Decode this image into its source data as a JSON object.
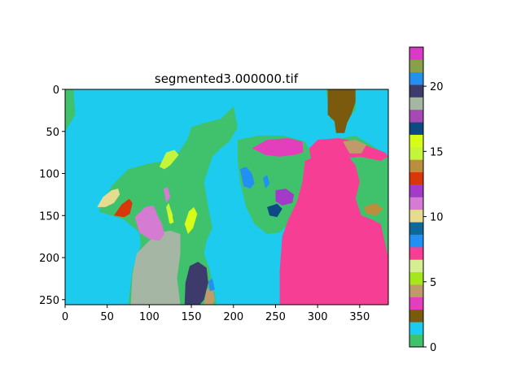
{
  "chart_data": {
    "type": "heatmap",
    "title": "segmented3.000000.tif",
    "xlabel": "",
    "ylabel": "",
    "xlim": [
      0,
      384
    ],
    "ylim": [
      256,
      0
    ],
    "x_ticks": [
      0,
      50,
      100,
      150,
      200,
      250,
      300,
      350
    ],
    "y_ticks": [
      0,
      50,
      100,
      150,
      200,
      250
    ],
    "colorbar": {
      "range": [
        0,
        23
      ],
      "ticks": [
        0,
        5,
        10,
        15,
        20
      ],
      "colors": [
        "#3fc26b",
        "#1ccbee",
        "#7b5a0e",
        "#e33fbd",
        "#c09a6b",
        "#a5e71b",
        "#d7ed93",
        "#f63e95",
        "#218ff3",
        "#10689a",
        "#e5dc90",
        "#d57bd1",
        "#a33ac8",
        "#d8370a",
        "#ba8e3d",
        "#c3f53b",
        "#d6fc18",
        "#0d4a84",
        "#a649b4",
        "#a5b6a4",
        "#3d3a6c",
        "#258ff0",
        "#88a04a",
        "#d93ac7"
      ]
    },
    "regions": [
      {
        "label": 1,
        "polygon": [
          [
            0,
            0
          ],
          [
            384,
            0
          ],
          [
            384,
            256
          ],
          [
            0,
            256
          ]
        ]
      },
      {
        "label": 0,
        "polygon": [
          [
            0,
            0
          ],
          [
            10,
            0
          ],
          [
            12,
            30
          ],
          [
            0,
            50
          ]
        ]
      },
      {
        "label": 0,
        "polygon": [
          [
            288,
            256
          ],
          [
            288,
            190
          ],
          [
            290,
            120
          ],
          [
            300,
            80
          ],
          [
            320,
            60
          ],
          [
            345,
            55
          ],
          [
            370,
            70
          ],
          [
            384,
            80
          ],
          [
            384,
            256
          ]
        ]
      },
      {
        "label": 0,
        "polygon": [
          [
            205,
            60
          ],
          [
            230,
            55
          ],
          [
            260,
            55
          ],
          [
            285,
            62
          ],
          [
            295,
            80
          ],
          [
            293,
            110
          ],
          [
            280,
            140
          ],
          [
            265,
            160
          ],
          [
            255,
            170
          ],
          [
            240,
            172
          ],
          [
            225,
            160
          ],
          [
            215,
            140
          ],
          [
            208,
            110
          ],
          [
            205,
            85
          ]
        ]
      },
      {
        "label": 0,
        "polygon": [
          [
            40,
            145
          ],
          [
            55,
            115
          ],
          [
            75,
            95
          ],
          [
            100,
            88
          ],
          [
            120,
            85
          ],
          [
            135,
            75
          ],
          [
            145,
            60
          ],
          [
            150,
            45
          ],
          [
            165,
            40
          ],
          [
            185,
            35
          ],
          [
            200,
            20
          ],
          [
            205,
            45
          ],
          [
            195,
            62
          ],
          [
            185,
            70
          ],
          [
            175,
            80
          ],
          [
            165,
            110
          ],
          [
            170,
            140
          ],
          [
            175,
            165
          ],
          [
            168,
            180
          ],
          [
            165,
            195
          ],
          [
            172,
            215
          ],
          [
            178,
            245
          ],
          [
            180,
            256
          ],
          [
            75,
            256
          ],
          [
            80,
            215
          ],
          [
            90,
            185
          ],
          [
            88,
            170
          ],
          [
            70,
            155
          ],
          [
            55,
            150
          ]
        ]
      },
      {
        "label": 0,
        "polygon": [
          [
            310,
            0
          ],
          [
            345,
            0
          ],
          [
            345,
            25
          ],
          [
            330,
            40
          ],
          [
            315,
            35
          ]
        ]
      },
      {
        "label": 7,
        "polygon": [
          [
            290,
            70
          ],
          [
            300,
            60
          ],
          [
            325,
            58
          ],
          [
            345,
            62
          ],
          [
            380,
            75
          ],
          [
            384,
            80
          ],
          [
            375,
            85
          ],
          [
            350,
            80
          ],
          [
            335,
            82
          ],
          [
            320,
            85
          ],
          [
            305,
            82
          ],
          [
            292,
            82
          ]
        ]
      },
      {
        "label": 7,
        "polygon": [
          [
            255,
            256
          ],
          [
            255,
            215
          ],
          [
            258,
            175
          ],
          [
            265,
            155
          ],
          [
            275,
            135
          ],
          [
            282,
            110
          ],
          [
            285,
            85
          ],
          [
            292,
            82
          ],
          [
            310,
            78
          ],
          [
            335,
            78
          ],
          [
            345,
            90
          ],
          [
            350,
            110
          ],
          [
            345,
            130
          ],
          [
            352,
            150
          ],
          [
            365,
            155
          ],
          [
            375,
            160
          ],
          [
            384,
            200
          ],
          [
            384,
            256
          ]
        ]
      },
      {
        "label": 19,
        "polygon": [
          [
            78,
            256
          ],
          [
            80,
            220
          ],
          [
            85,
            195
          ],
          [
            100,
            180
          ],
          [
            115,
            170
          ],
          [
            125,
            168
          ],
          [
            137,
            172
          ],
          [
            137,
            195
          ],
          [
            133,
            225
          ],
          [
            137,
            256
          ]
        ]
      },
      {
        "label": 20,
        "polygon": [
          [
            142,
            256
          ],
          [
            143,
            230
          ],
          [
            148,
            210
          ],
          [
            158,
            205
          ],
          [
            168,
            212
          ],
          [
            170,
            230
          ],
          [
            165,
            250
          ],
          [
            160,
            256
          ]
        ]
      },
      {
        "label": 4,
        "polygon": [
          [
            165,
            256
          ],
          [
            168,
            238
          ],
          [
            175,
            236
          ],
          [
            178,
            250
          ],
          [
            175,
            256
          ]
        ]
      },
      {
        "label": 21,
        "polygon": [
          [
            170,
            228
          ],
          [
            175,
            225
          ],
          [
            178,
            238
          ],
          [
            172,
            240
          ]
        ]
      },
      {
        "label": 11,
        "polygon": [
          [
            83,
            152
          ],
          [
            95,
            140
          ],
          [
            105,
            138
          ],
          [
            110,
            150
          ],
          [
            115,
            160
          ],
          [
            118,
            172
          ],
          [
            112,
            180
          ],
          [
            100,
            178
          ],
          [
            88,
            170
          ]
        ]
      },
      {
        "label": 13,
        "polygon": [
          [
            58,
            150
          ],
          [
            67,
            137
          ],
          [
            76,
            130
          ],
          [
            80,
            135
          ],
          [
            77,
            148
          ],
          [
            70,
            152
          ]
        ]
      },
      {
        "label": 10,
        "polygon": [
          [
            38,
            140
          ],
          [
            45,
            128
          ],
          [
            55,
            120
          ],
          [
            63,
            118
          ],
          [
            65,
            125
          ],
          [
            58,
            135
          ],
          [
            48,
            140
          ]
        ]
      },
      {
        "label": 11,
        "polygon": [
          [
            117,
            118
          ],
          [
            122,
            116
          ],
          [
            125,
            128
          ],
          [
            120,
            135
          ]
        ]
      },
      {
        "label": 15,
        "polygon": [
          [
            112,
            92
          ],
          [
            120,
            75
          ],
          [
            130,
            72
          ],
          [
            135,
            78
          ],
          [
            125,
            90
          ],
          [
            118,
            95
          ]
        ]
      },
      {
        "label": 15,
        "polygon": [
          [
            120,
            140
          ],
          [
            123,
            135
          ],
          [
            128,
            150
          ],
          [
            124,
            160
          ]
        ]
      },
      {
        "label": 16,
        "polygon": [
          [
            142,
            160
          ],
          [
            147,
            145
          ],
          [
            153,
            140
          ],
          [
            157,
            148
          ],
          [
            152,
            165
          ],
          [
            146,
            172
          ]
        ]
      },
      {
        "label": 16,
        "polygon": [
          [
            123,
            148
          ],
          [
            126,
            145
          ],
          [
            129,
            158
          ],
          [
            125,
            160
          ]
        ]
      },
      {
        "label": 3,
        "polygon": [
          [
            222,
            70
          ],
          [
            240,
            60
          ],
          [
            265,
            58
          ],
          [
            282,
            62
          ],
          [
            283,
            75
          ],
          [
            272,
            78
          ],
          [
            255,
            80
          ],
          [
            238,
            78
          ]
        ]
      },
      {
        "label": 8,
        "polygon": [
          [
            208,
            95
          ],
          [
            215,
            92
          ],
          [
            222,
            100
          ],
          [
            225,
            112
          ],
          [
            220,
            118
          ],
          [
            212,
            115
          ]
        ]
      },
      {
        "label": 8,
        "polygon": [
          [
            235,
            105
          ],
          [
            240,
            102
          ],
          [
            243,
            112
          ],
          [
            238,
            118
          ]
        ]
      },
      {
        "label": 12,
        "polygon": [
          [
            250,
            120
          ],
          [
            262,
            118
          ],
          [
            272,
            125
          ],
          [
            270,
            135
          ],
          [
            258,
            138
          ],
          [
            250,
            133
          ]
        ]
      },
      {
        "label": 17,
        "polygon": [
          [
            240,
            140
          ],
          [
            252,
            136
          ],
          [
            258,
            142
          ],
          [
            252,
            152
          ],
          [
            243,
            150
          ]
        ]
      },
      {
        "label": 4,
        "polygon": [
          [
            330,
            62
          ],
          [
            345,
            60
          ],
          [
            358,
            66
          ],
          [
            352,
            76
          ],
          [
            338,
            76
          ]
        ]
      },
      {
        "label": 14,
        "polygon": [
          [
            355,
            140
          ],
          [
            368,
            135
          ],
          [
            378,
            142
          ],
          [
            370,
            150
          ],
          [
            358,
            148
          ]
        ]
      },
      {
        "label": 2,
        "polygon": [
          [
            312,
            0
          ],
          [
            345,
            0
          ],
          [
            345,
            15
          ],
          [
            340,
            30
          ],
          [
            335,
            40
          ],
          [
            332,
            52
          ],
          [
            322,
            52
          ],
          [
            320,
            38
          ],
          [
            312,
            30
          ]
        ]
      }
    ]
  }
}
